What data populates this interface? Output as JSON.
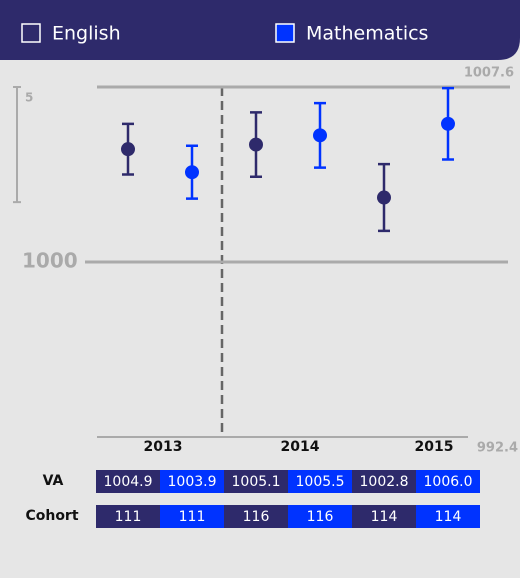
{
  "chart_data": {
    "type": "errorbar",
    "categories": [
      "2013",
      "2014",
      "2015"
    ],
    "series": [
      {
        "name": "English",
        "color": "#2e2a6b",
        "values": [
          1004.9,
          1005.1,
          1002.8
        ],
        "errors": [
          1.1,
          1.4,
          1.45
        ],
        "value_labels": [
          "1004.9",
          "1005.1",
          "1002.8"
        ],
        "cohort": [
          111,
          116,
          114
        ],
        "checked": false
      },
      {
        "name": "Mathematics",
        "color": "#0033ff",
        "values": [
          1003.9,
          1005.5,
          1006.0
        ],
        "errors": [
          1.15,
          1.4,
          1.55
        ],
        "value_labels": [
          "1003.9",
          "1005.5",
          "1006.0"
        ],
        "cohort": [
          111,
          116,
          114
        ],
        "checked": true
      }
    ],
    "ylim": [
      992.4,
      1007.6
    ],
    "yticks": [
      1007.6,
      1000,
      992.4
    ],
    "scale_bar": 5,
    "row_labels": [
      "VA",
      "Cohort"
    ]
  }
}
